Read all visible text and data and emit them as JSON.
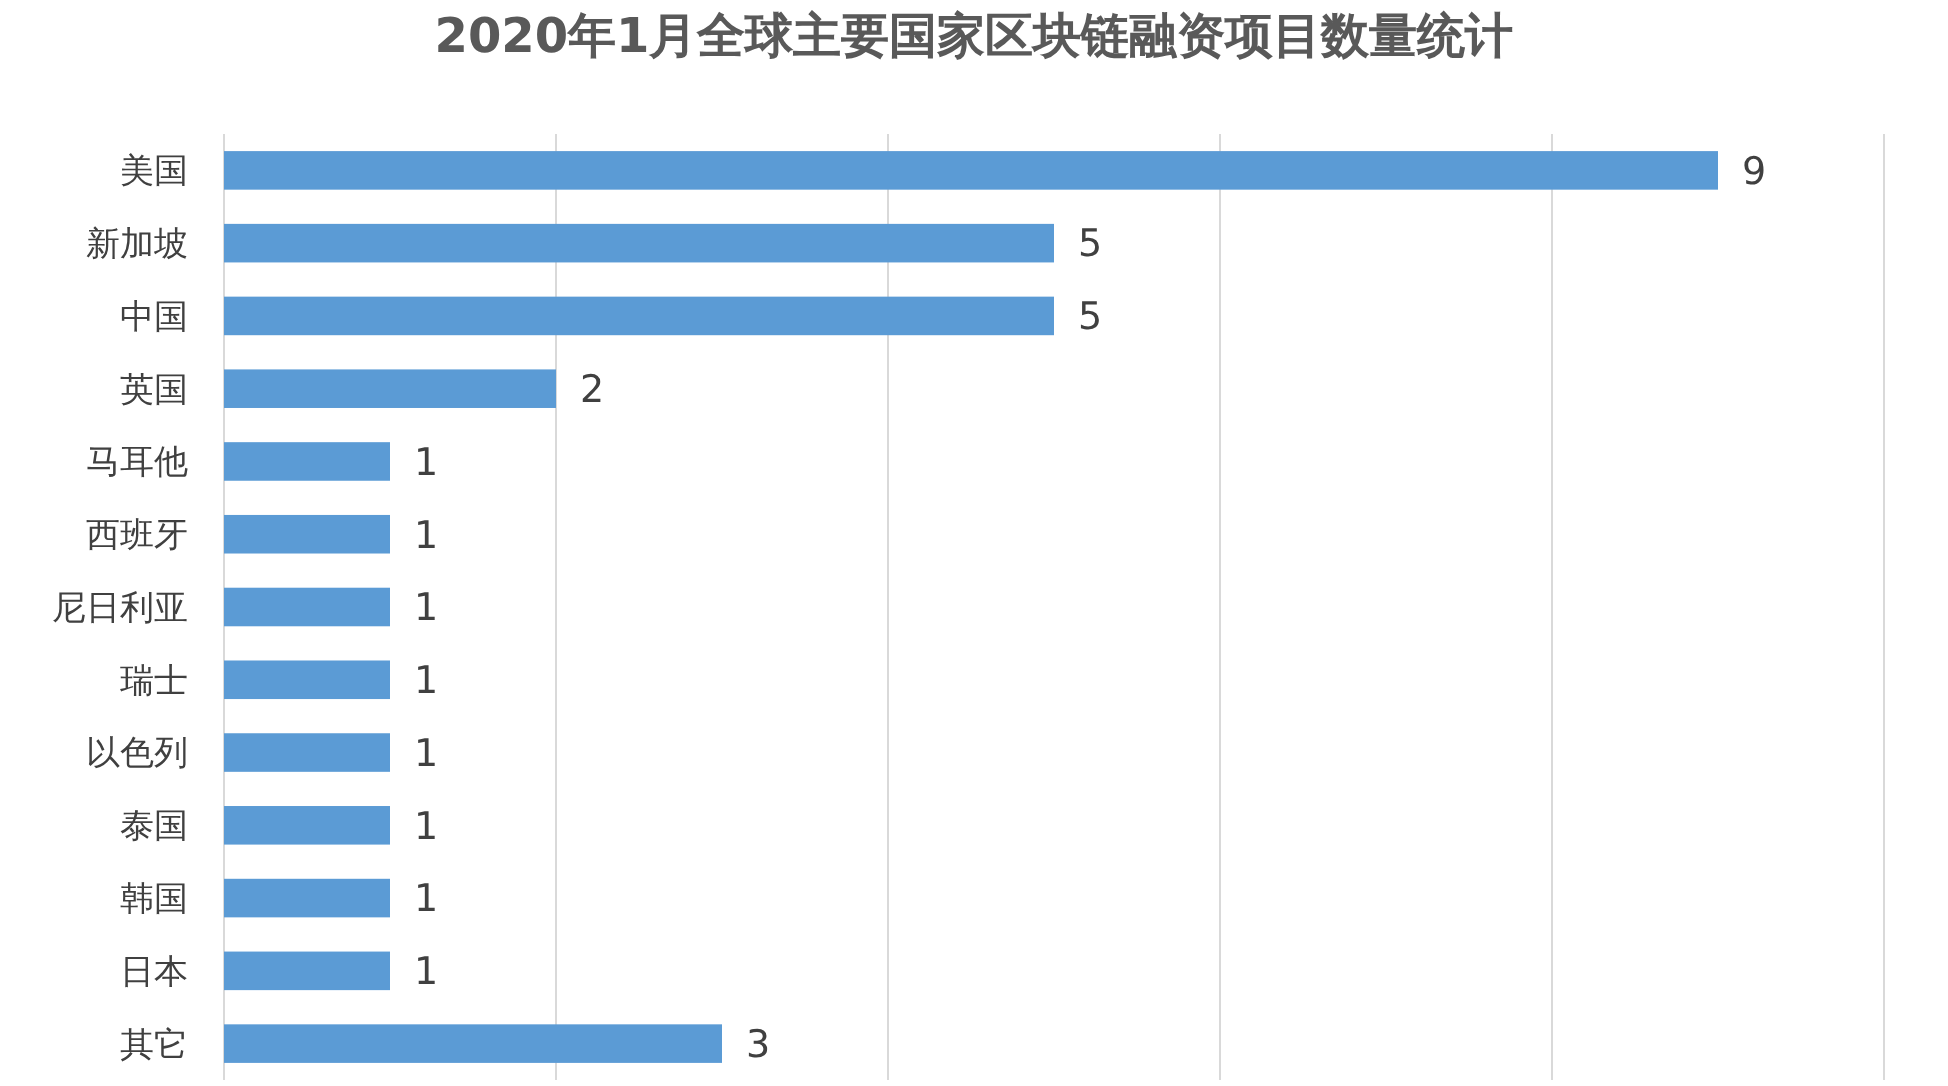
{
  "chart_data": {
    "type": "bar",
    "orientation": "horizontal",
    "title": "2020年1月全球主要国家区块链融资项目数量统计",
    "categories": [
      "美国",
      "新加坡",
      "中国",
      "英国",
      "马耳他",
      "西班牙",
      "尼日利亚",
      "瑞士",
      "以色列",
      "泰国",
      "韩国",
      "日本",
      "其它"
    ],
    "values": [
      9,
      5,
      5,
      2,
      1,
      1,
      1,
      1,
      1,
      1,
      1,
      1,
      3
    ],
    "color": "#5b9bd5",
    "data_labels": true,
    "grid": "x",
    "tick_labels": "y",
    "xlim": [
      0,
      10
    ],
    "xticks": [
      {
        "value": 0,
        "label": null
      },
      {
        "value": 2,
        "label": null
      },
      {
        "value": 4,
        "label": null
      },
      {
        "value": 6,
        "label": null
      },
      {
        "value": 8,
        "label": null
      },
      {
        "value": 10,
        "label": null
      }
    ]
  }
}
